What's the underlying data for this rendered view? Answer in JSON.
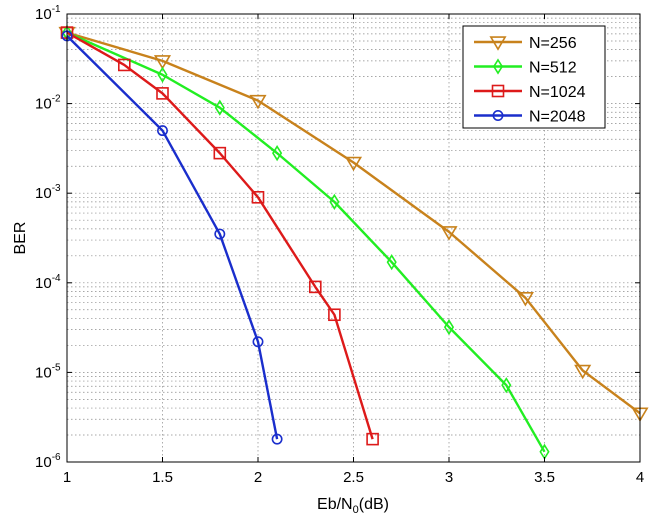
{
  "chart_data": {
    "type": "line",
    "title": "",
    "xlabel": "Eb/N0(dB)",
    "xlabel_parts": {
      "main": "Eb/N",
      "sub": "0",
      "tail": "(dB)"
    },
    "ylabel": "BER",
    "xlim": [
      1,
      4
    ],
    "ylim": [
      1e-06,
      0.1
    ],
    "yscale": "log",
    "grid": true,
    "legend_position": "top-right",
    "x_ticks": [
      "1",
      "1.5",
      "2",
      "2.5",
      "3",
      "3.5",
      "4"
    ],
    "y_ticks": [
      {
        "base": "10",
        "exp": "-1"
      },
      {
        "base": "10",
        "exp": "-2"
      },
      {
        "base": "10",
        "exp": "-3"
      },
      {
        "base": "10",
        "exp": "-4"
      },
      {
        "base": "10",
        "exp": "-5"
      },
      {
        "base": "10",
        "exp": "-6"
      }
    ],
    "series": [
      {
        "name": "N=256",
        "color": "#C8821C",
        "marker": "triangle-down",
        "x": [
          1,
          1.5,
          2,
          2.5,
          3,
          3.4,
          3.7,
          4
        ],
        "y": [
          0.062,
          0.03,
          0.0108,
          0.0022,
          0.00037,
          6.8e-05,
          1.05e-05,
          3.5e-06
        ]
      },
      {
        "name": "N=512",
        "color": "#22EE22",
        "marker": "diamond",
        "x": [
          1,
          1.5,
          1.8,
          2.1,
          2.4,
          2.7,
          3,
          3.3,
          3.5
        ],
        "y": [
          0.062,
          0.021,
          0.009,
          0.0028,
          0.0008,
          0.00017,
          3.2e-05,
          7.2e-06,
          1.3e-06
        ]
      },
      {
        "name": "N=1024",
        "color": "#DD1A1A",
        "marker": "square",
        "x": [
          1,
          1.3,
          1.5,
          1.8,
          2,
          2.3,
          2.4,
          2.6
        ],
        "y": [
          0.062,
          0.027,
          0.013,
          0.0028,
          0.0009,
          9e-05,
          4.4e-05,
          1.8e-06
        ]
      },
      {
        "name": "N=2048",
        "color": "#1A2ECC",
        "marker": "circle",
        "x": [
          1,
          1.5,
          1.8,
          2,
          2.1
        ],
        "y": [
          0.057,
          0.005,
          0.00035,
          2.2e-05,
          1.8e-06
        ]
      }
    ]
  }
}
